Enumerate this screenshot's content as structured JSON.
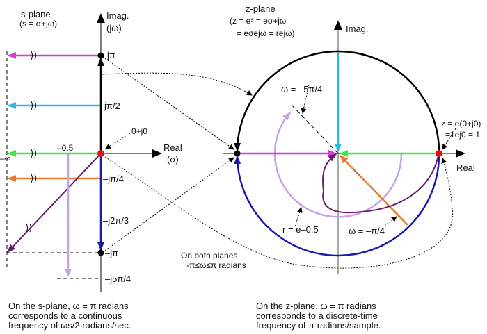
{
  "s_plane": {
    "title": "s-plane",
    "subtitle": "(s = σ+jω)",
    "imag_label": "Imag.",
    "imag_unit": "(jω)",
    "real_label": "Real",
    "real_unit": "(σ)",
    "origin_label": "0+j0",
    "neg_inf_label": "–∞",
    "sigma_label": "–0.5",
    "ticks": [
      "jπ",
      "jπ/2",
      "–jπ/4",
      "–j2π/3",
      "–jπ",
      "–j5π/4"
    ]
  },
  "z_plane": {
    "title": "z-plane",
    "eq_line1": "(z = eˢ = eσ+jω",
    "eq_line2": "= eσejω = rejω)",
    "imag_label": "Imag.",
    "real_label": "Real",
    "unit_point_line1": "z = e(0+j0)",
    "unit_point_line2": "=1ej0 = 1",
    "omega_neg5pi4": "ω = –5π/4",
    "omega_negpi4": "ω = –π/4",
    "radius_label": "r = e–0.5"
  },
  "middle_note": [
    "On both planes",
    "-π≤ω≤π radians"
  ],
  "s_note": [
    "On the s-plane, ω =  π radians",
    "corresponds to a continuous",
    "frequency of ωs/2 radians/sec."
  ],
  "z_note": [
    "On the z-plane, ω =  π radians",
    "corresponds to a discrete-time",
    "frequency of π radians/sample."
  ],
  "colors": {
    "magenta": "#d23fd6",
    "cyan": "#2ab8e0",
    "green": "#3ee83e",
    "orange": "#e8782a",
    "purple": "#6a1a6e",
    "lavender": "#c5a3e6",
    "blue": "#1a1aa8",
    "red": "#e81010"
  }
}
